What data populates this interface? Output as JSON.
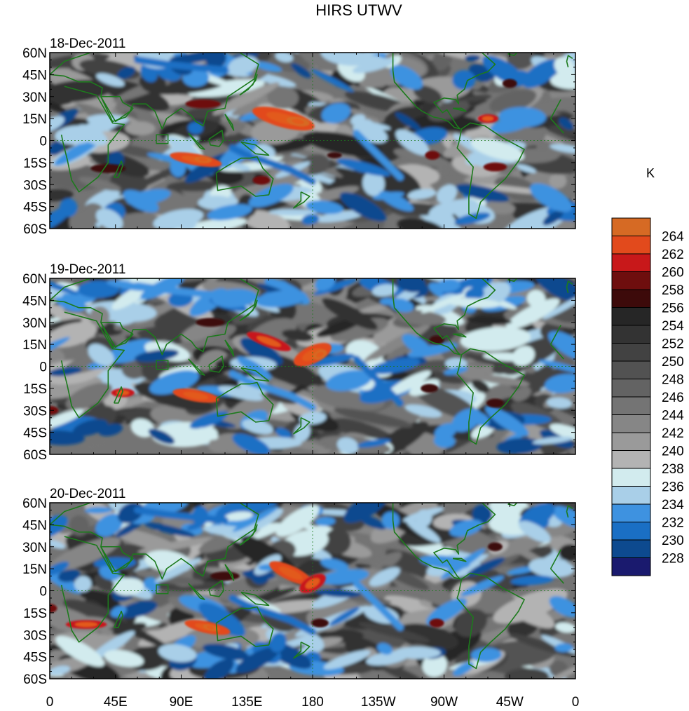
{
  "title": "HIRS UTWV",
  "units": "K",
  "panels": [
    {
      "date": "18-Dec-2011"
    },
    {
      "date": "19-Dec-2011"
    },
    {
      "date": "20-Dec-2011"
    }
  ],
  "lat_labels": [
    "60N",
    "45N",
    "30N",
    "15N",
    "0",
    "15S",
    "30S",
    "45S",
    "60S"
  ],
  "lon_labels": [
    "0",
    "45E",
    "90E",
    "135E",
    "180",
    "135W",
    "90W",
    "45W",
    "0"
  ],
  "colorbar": {
    "levels": [
      228,
      230,
      232,
      234,
      236,
      238,
      240,
      242,
      244,
      246,
      248,
      250,
      252,
      254,
      256,
      258,
      260,
      262,
      264
    ],
    "colors": [
      "#1a1a6e",
      "#0d4a8f",
      "#1a6fc4",
      "#3e92e0",
      "#a9cfe8",
      "#d2ebee",
      "#b3b3b3",
      "#9a9a9a",
      "#868686",
      "#747474",
      "#636363",
      "#525252",
      "#424242",
      "#333333",
      "#262626",
      "#3d0a0a",
      "#6e0e0e",
      "#c8181a",
      "#e24a1c",
      "#d66a24"
    ]
  },
  "colors": {
    "coastline": "#1d7a1d",
    "warm_core": "#e25a1c",
    "dry_red": "#b01818"
  }
}
